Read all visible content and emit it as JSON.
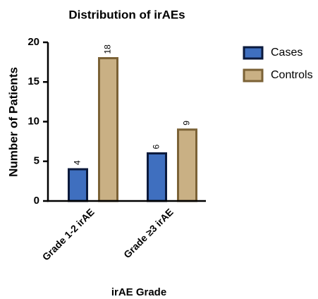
{
  "chart_data": {
    "type": "bar",
    "title": "Distribution of irAEs",
    "x_label": "irAE Grade",
    "y_label": "Number of Patients",
    "categories": [
      "Grade 1-2 irAE",
      "Grade ≥3 irAE"
    ],
    "series": [
      {
        "name": "Cases",
        "color": "#3f6fbf",
        "edge_color": "#0b1a3c",
        "values": [
          4,
          6
        ]
      },
      {
        "name": "Controls",
        "color": "#c9b084",
        "edge_color": "#7b6236",
        "values": [
          18,
          9
        ]
      }
    ],
    "ylim": [
      0,
      20
    ],
    "yticks": [
      0,
      5,
      10,
      15,
      20
    ],
    "grid": false,
    "legend": "top-right",
    "data_labels": true
  }
}
